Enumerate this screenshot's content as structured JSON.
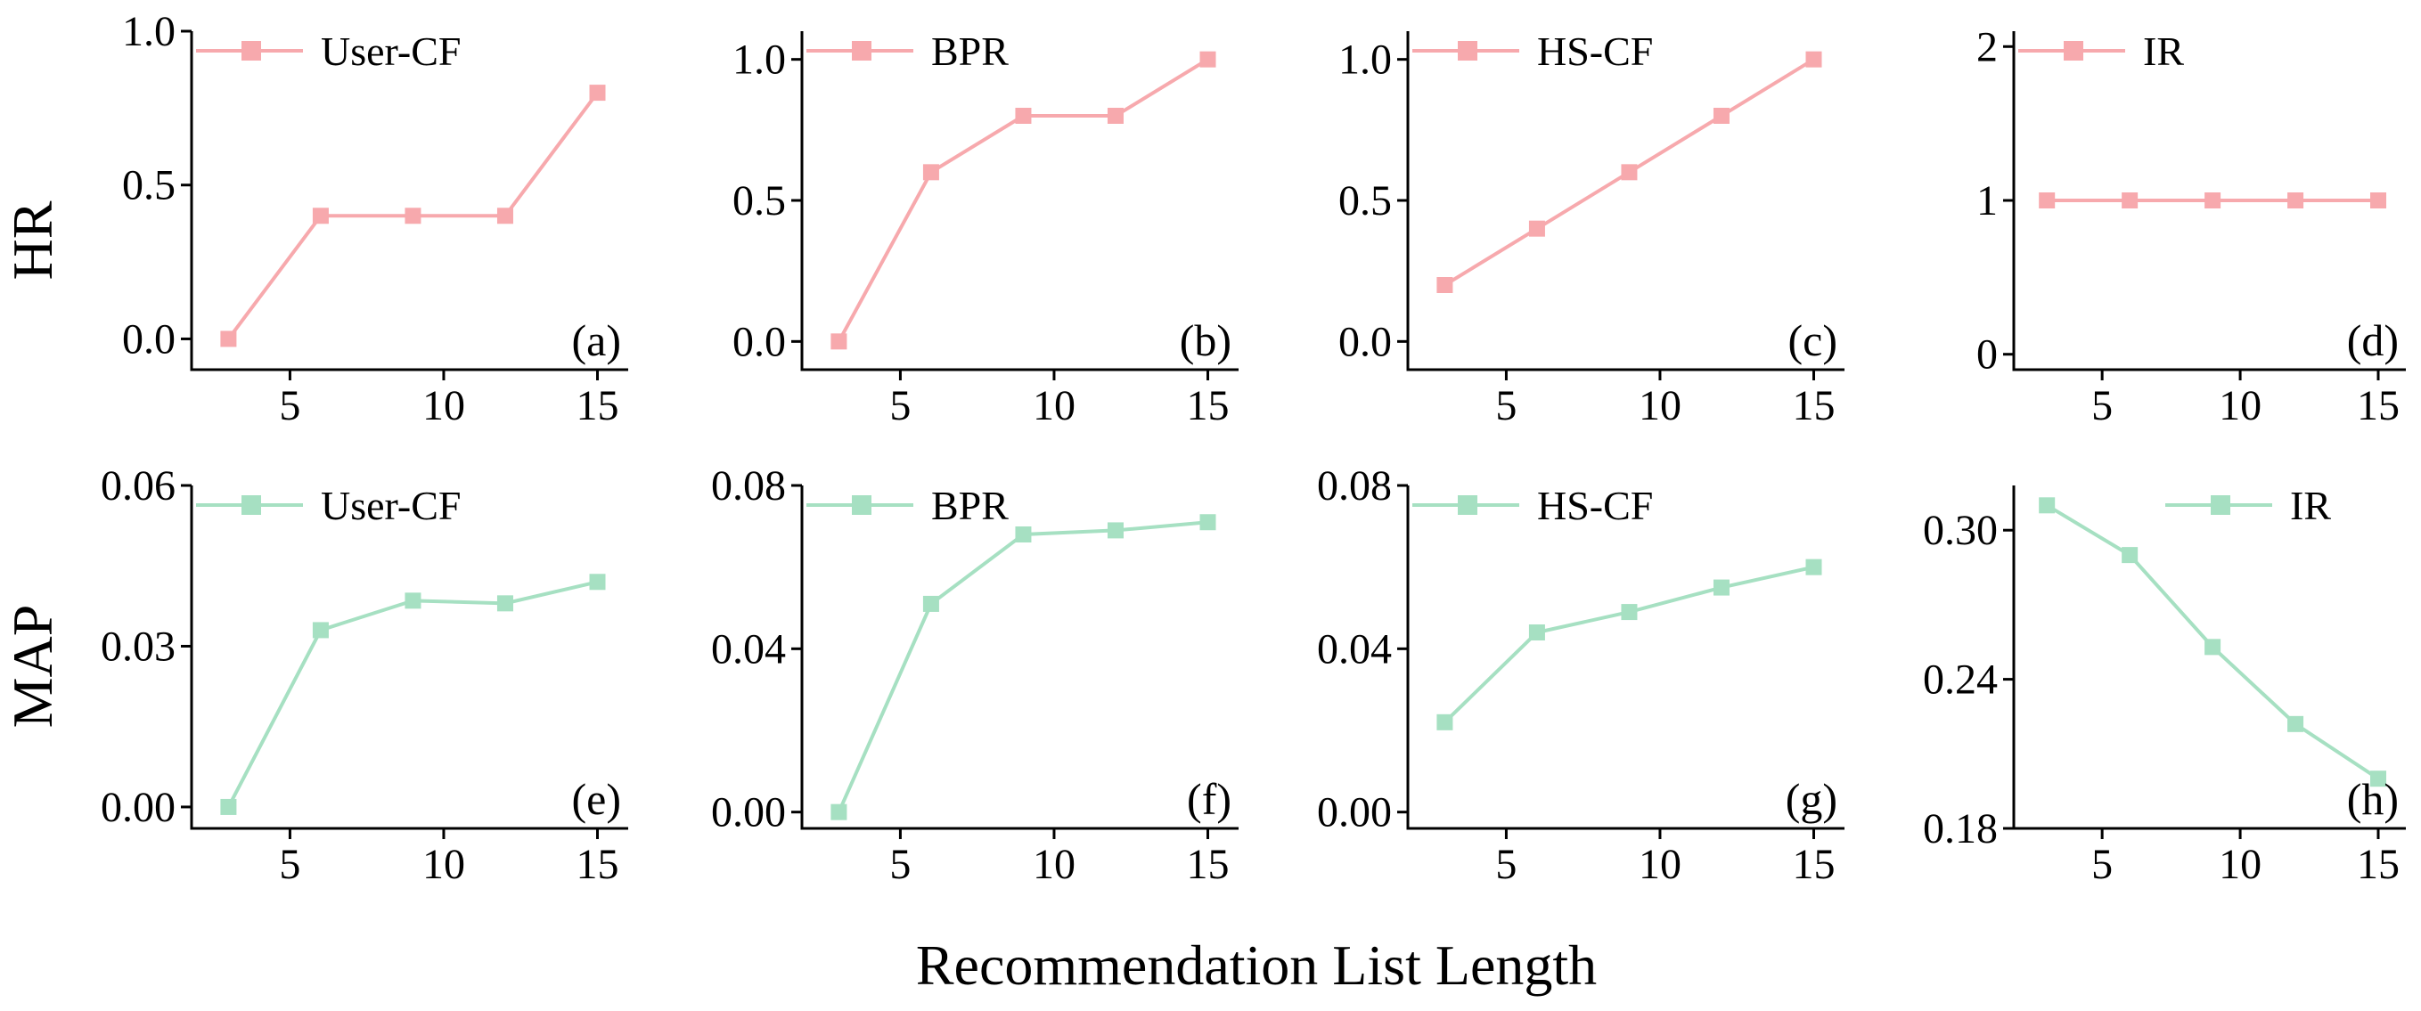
{
  "chart_data": {
    "type": "line",
    "figure_xlabel": "Recommendation List Length",
    "row_labels": [
      "HR",
      "MAP"
    ],
    "colors": {
      "HR": "#f7a9ad",
      "MAP": "#a6e0c2"
    },
    "panels": [
      {
        "id": "a",
        "label": "(a)",
        "metric": "HR",
        "legend": "User-CF",
        "legend_position": "top-left",
        "x": [
          3,
          6,
          9,
          12,
          15
        ],
        "y": [
          0.0,
          0.4,
          0.4,
          0.4,
          0.8
        ],
        "ylim": [
          -0.1,
          1.0
        ],
        "yticks": [
          0.0,
          0.5,
          1.0
        ],
        "ytick_labels": [
          "0.0",
          "0.5",
          "1.0"
        ],
        "xlim": [
          1.8,
          16.0
        ],
        "xticks": [
          5,
          10,
          15
        ],
        "xtick_labels": [
          "5",
          "10",
          "15"
        ]
      },
      {
        "id": "b",
        "label": "(b)",
        "metric": "HR",
        "legend": "BPR",
        "legend_position": "top-left",
        "x": [
          3,
          6,
          9,
          12,
          15
        ],
        "y": [
          0.0,
          0.6,
          0.8,
          0.8,
          1.0
        ],
        "ylim": [
          -0.1,
          1.1
        ],
        "yticks": [
          0.0,
          0.5,
          1.0
        ],
        "ytick_labels": [
          "0.0",
          "0.5",
          "1.0"
        ],
        "xlim": [
          1.8,
          16.0
        ],
        "xticks": [
          5,
          10,
          15
        ],
        "xtick_labels": [
          "5",
          "10",
          "15"
        ]
      },
      {
        "id": "c",
        "label": "(c)",
        "metric": "HR",
        "legend": "HS-CF",
        "legend_position": "top-left",
        "x": [
          3,
          6,
          9,
          12,
          15
        ],
        "y": [
          0.2,
          0.4,
          0.6,
          0.8,
          1.0
        ],
        "ylim": [
          -0.1,
          1.1
        ],
        "yticks": [
          0.0,
          0.5,
          1.0
        ],
        "ytick_labels": [
          "0.0",
          "0.5",
          "1.0"
        ],
        "xlim": [
          1.8,
          16.0
        ],
        "xticks": [
          5,
          10,
          15
        ],
        "xtick_labels": [
          "5",
          "10",
          "15"
        ]
      },
      {
        "id": "d",
        "label": "(d)",
        "metric": "HR",
        "legend": "IR",
        "legend_position": "top-left",
        "x": [
          3,
          6,
          9,
          12,
          15
        ],
        "y": [
          1,
          1,
          1,
          1,
          1
        ],
        "ylim": [
          -0.1,
          2.1
        ],
        "yticks": [
          0,
          1,
          2
        ],
        "ytick_labels": [
          "0",
          "1",
          "2"
        ],
        "xlim": [
          1.8,
          16.0
        ],
        "xticks": [
          5,
          10,
          15
        ],
        "xtick_labels": [
          "5",
          "10",
          "15"
        ]
      },
      {
        "id": "e",
        "label": "(e)",
        "metric": "MAP",
        "legend": "User-CF",
        "legend_position": "top-left",
        "x": [
          3,
          6,
          9,
          12,
          15
        ],
        "y": [
          0.0,
          0.033,
          0.0385,
          0.038,
          0.042
        ],
        "ylim": [
          -0.004,
          0.06
        ],
        "yticks": [
          0.0,
          0.03,
          0.06
        ],
        "ytick_labels": [
          "0.00",
          "0.03",
          "0.06"
        ],
        "xlim": [
          1.8,
          16.0
        ],
        "xticks": [
          5,
          10,
          15
        ],
        "xtick_labels": [
          "5",
          "10",
          "15"
        ]
      },
      {
        "id": "f",
        "label": "(f)",
        "metric": "MAP",
        "legend": "BPR",
        "legend_position": "top-left",
        "x": [
          3,
          6,
          9,
          12,
          15
        ],
        "y": [
          0.0,
          0.051,
          0.068,
          0.069,
          0.071
        ],
        "ylim": [
          -0.004,
          0.08
        ],
        "yticks": [
          0.0,
          0.04,
          0.08
        ],
        "ytick_labels": [
          "0.00",
          "0.04",
          "0.08"
        ],
        "xlim": [
          1.8,
          16.0
        ],
        "xticks": [
          5,
          10,
          15
        ],
        "xtick_labels": [
          "5",
          "10",
          "15"
        ]
      },
      {
        "id": "g",
        "label": "(g)",
        "metric": "MAP",
        "legend": "HS-CF",
        "legend_position": "top-left",
        "x": [
          3,
          6,
          9,
          12,
          15
        ],
        "y": [
          0.022,
          0.044,
          0.049,
          0.055,
          0.06
        ],
        "ylim": [
          -0.004,
          0.08
        ],
        "yticks": [
          0.0,
          0.04,
          0.08
        ],
        "ytick_labels": [
          "0.00",
          "0.04",
          "0.08"
        ],
        "xlim": [
          1.8,
          16.0
        ],
        "xticks": [
          5,
          10,
          15
        ],
        "xtick_labels": [
          "5",
          "10",
          "15"
        ]
      },
      {
        "id": "h",
        "label": "(h)",
        "metric": "MAP",
        "legend": "IR",
        "legend_position": "top-right",
        "x": [
          3,
          6,
          9,
          12,
          15
        ],
        "y": [
          0.31,
          0.29,
          0.253,
          0.222,
          0.2
        ],
        "ylim": [
          0.18,
          0.318
        ],
        "yticks": [
          0.18,
          0.24,
          0.3
        ],
        "ytick_labels": [
          "0.18",
          "0.24",
          "0.30"
        ],
        "xlim": [
          1.8,
          16.0
        ],
        "xticks": [
          5,
          10,
          15
        ],
        "xtick_labels": [
          "5",
          "10",
          "15"
        ]
      }
    ]
  }
}
